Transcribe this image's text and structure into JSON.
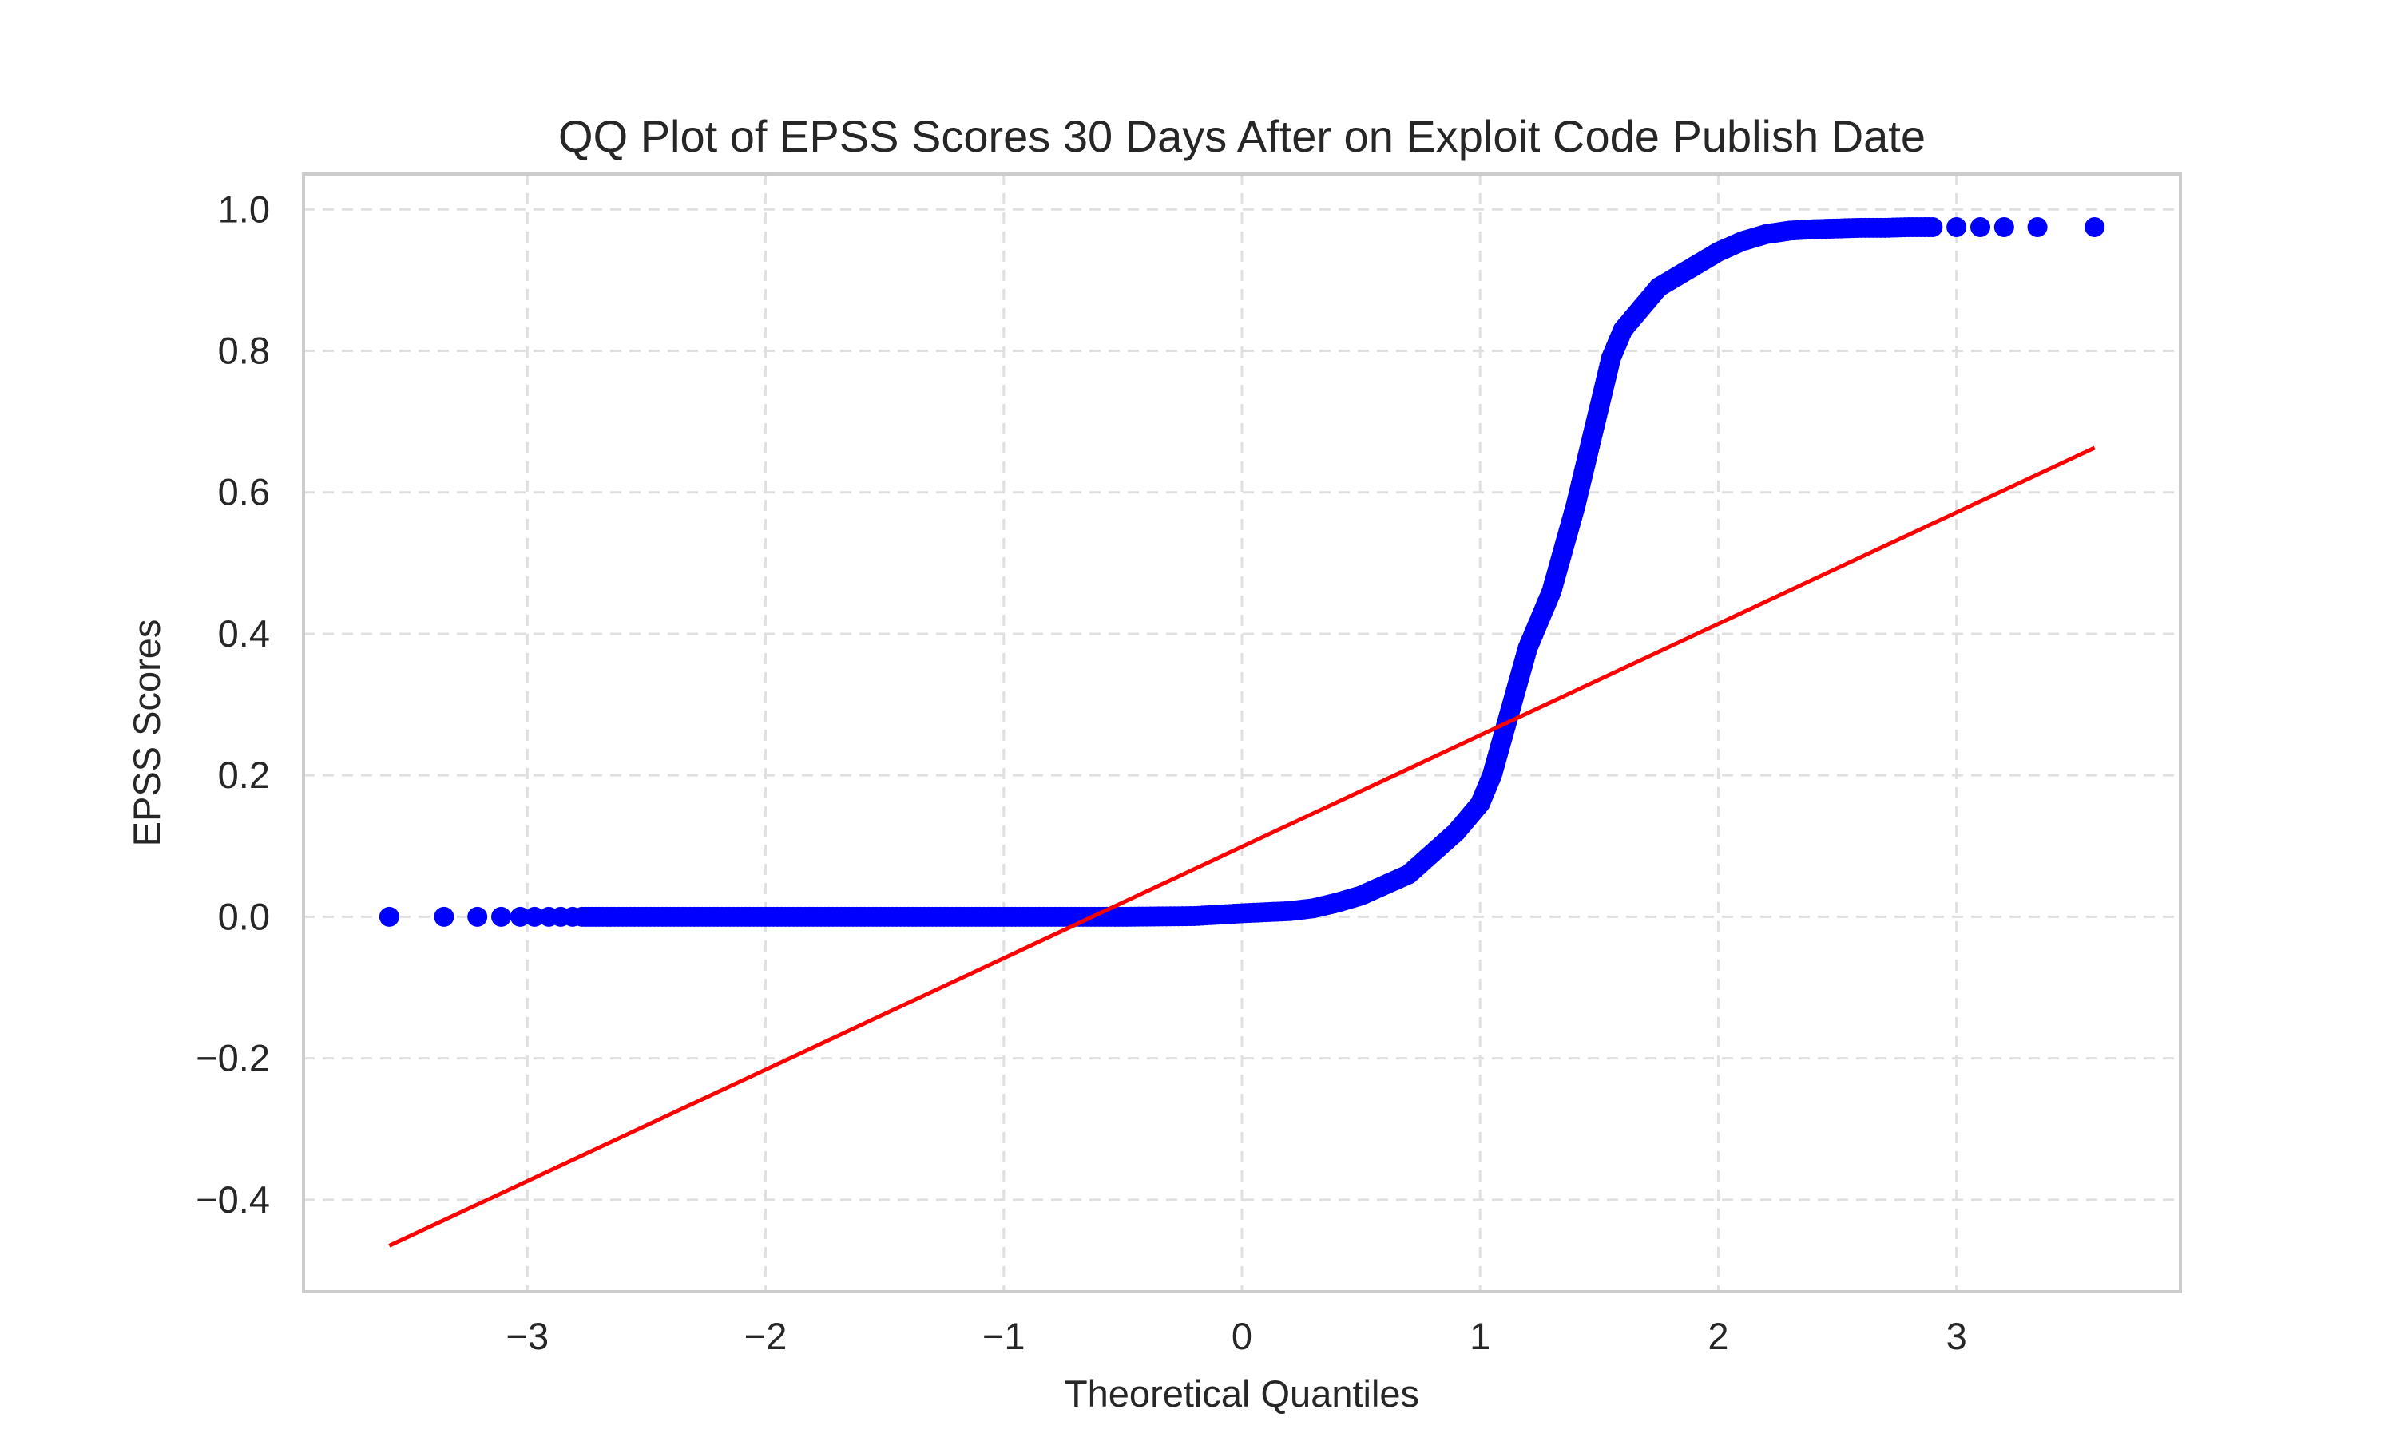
{
  "chart_data": {
    "type": "scatter",
    "title": "QQ Plot of EPSS Scores 30 Days After on Exploit Code Publish Date",
    "xlabel": "Theoretical Quantiles",
    "ylabel": "EPSS Scores",
    "xlim": [
      -3.94,
      3.94
    ],
    "ylim": [
      -0.53,
      1.05
    ],
    "xticks": [
      -3,
      -2,
      -1,
      0,
      1,
      2,
      3
    ],
    "xtick_labels": [
      "−3",
      "−2",
      "−1",
      "0",
      "1",
      "2",
      "3"
    ],
    "yticks": [
      -0.4,
      -0.2,
      0.0,
      0.2,
      0.4,
      0.6,
      0.8,
      1.0
    ],
    "ytick_labels": [
      "−0.4",
      "−0.2",
      "0.0",
      "0.2",
      "0.4",
      "0.6",
      "0.8",
      "1.0"
    ],
    "grid": true,
    "series": [
      {
        "kind": "points",
        "color": "#0000ff",
        "x": [
          -3.58,
          -3.35,
          -3.21,
          -3.11,
          -3.03,
          -2.97,
          -2.91,
          -2.86,
          -2.81,
          -2.77,
          -2.7,
          -2.6,
          -2.5,
          -2.3,
          -2.0,
          -1.5,
          -1.0,
          -0.5,
          -0.2,
          0.0,
          0.2,
          0.3,
          0.4,
          0.5,
          0.6,
          0.7,
          0.8,
          0.9,
          1.0,
          1.05,
          1.1,
          1.15,
          1.2,
          1.25,
          1.3,
          1.35,
          1.4,
          1.45,
          1.5,
          1.55,
          1.6,
          1.65,
          1.7,
          1.75,
          1.8,
          1.85,
          1.9,
          1.95,
          2.0,
          2.1,
          2.2,
          2.3,
          2.4,
          2.5,
          2.6,
          2.7,
          2.8,
          2.9,
          3.0,
          3.1,
          3.2,
          3.34,
          3.58
        ],
        "y": [
          0.0,
          0.0,
          0.0,
          0.0,
          0.0,
          0.0,
          0.0,
          0.0,
          0.0,
          0.0,
          0.0,
          0.0,
          0.0,
          0.0,
          0.0,
          0.0,
          0.0,
          0.0,
          0.001,
          0.005,
          0.008,
          0.012,
          0.02,
          0.03,
          0.045,
          0.06,
          0.09,
          0.12,
          0.16,
          0.2,
          0.26,
          0.32,
          0.38,
          0.42,
          0.46,
          0.52,
          0.58,
          0.65,
          0.72,
          0.79,
          0.83,
          0.85,
          0.87,
          0.89,
          0.9,
          0.91,
          0.92,
          0.93,
          0.94,
          0.955,
          0.965,
          0.97,
          0.972,
          0.973,
          0.974,
          0.974,
          0.975,
          0.975,
          0.975,
          0.975,
          0.975,
          0.975,
          0.975
        ]
      },
      {
        "kind": "line",
        "color": "#ff0000",
        "x": [
          -3.58,
          3.58
        ],
        "y": [
          -0.465,
          0.663
        ]
      }
    ]
  }
}
